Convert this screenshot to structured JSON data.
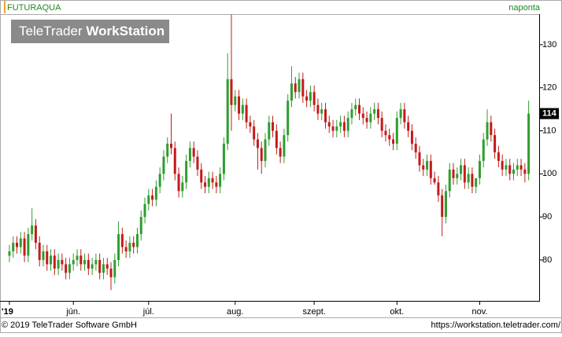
{
  "header": {
    "symbol": "FUTURAQUA",
    "interval": "naponta"
  },
  "watermark": {
    "brand": "TeleTrader",
    "product": "WorkStation"
  },
  "footer": {
    "copyright": "© 2019 TeleTrader Software GmbH",
    "url": "https://workstation.teletrader.com/"
  },
  "chart_data": {
    "type": "candlestick",
    "open": [
      81,
      82,
      84,
      83,
      85,
      81,
      86,
      88,
      84,
      80,
      82,
      79,
      81,
      78,
      80,
      79,
      77,
      79,
      80,
      81,
      79,
      80,
      78,
      79,
      80,
      77,
      79,
      78,
      76,
      80,
      86,
      83,
      82,
      84,
      83,
      86,
      90,
      93,
      95,
      94,
      97,
      100,
      104,
      107,
      106,
      100,
      96,
      98,
      103,
      106,
      104,
      101,
      98,
      97,
      99,
      98,
      97,
      100,
      107,
      122,
      116,
      118,
      114,
      116,
      112,
      111,
      108,
      106,
      103,
      108,
      112,
      110,
      106,
      104,
      109,
      117,
      121,
      119,
      122,
      118,
      117,
      119,
      116,
      114,
      115,
      112,
      111,
      110,
      111,
      112,
      110,
      113,
      115,
      116,
      114,
      113,
      112,
      114,
      115,
      113,
      110,
      109,
      108,
      107,
      113,
      115,
      112,
      110,
      107,
      105,
      102,
      101,
      103,
      99,
      98,
      95,
      90,
      96,
      101,
      99,
      100,
      102,
      98,
      100,
      97,
      99,
      103,
      108,
      112,
      109,
      105,
      103,
      101,
      102,
      100,
      101,
      102,
      101,
      100
    ],
    "high": [
      83.5,
      85.5,
      85.5,
      86.5,
      86.5,
      87.5,
      92,
      89.5,
      85.5,
      83.5,
      83.5,
      82.5,
      82.5,
      81.5,
      81.5,
      80.5,
      80.5,
      81.5,
      82.5,
      82.5,
      81.5,
      81.5,
      80.5,
      81.5,
      81.5,
      80.5,
      80.5,
      79.5,
      81.5,
      89,
      87.5,
      84.5,
      85.5,
      85.5,
      87.5,
      91.5,
      94.5,
      96.5,
      96.5,
      98.5,
      101.5,
      105.5,
      108.5,
      114,
      107.5,
      101.5,
      99.5,
      104.5,
      107.5,
      107.5,
      105.5,
      102.5,
      99.5,
      100.5,
      100.5,
      99.5,
      101.5,
      108.5,
      128,
      137,
      119.5,
      119.5,
      117.5,
      117.5,
      113.5,
      112.5,
      109.5,
      107.5,
      109.5,
      113.5,
      113.5,
      111.5,
      107.5,
      110.5,
      118.5,
      125,
      122.5,
      123.5,
      123.5,
      119.5,
      120.5,
      120.5,
      117.5,
      116.5,
      116.5,
      113.5,
      112.5,
      112.5,
      113.5,
      113.5,
      114.5,
      116.5,
      117.5,
      117.5,
      115.5,
      114.5,
      115.5,
      116.5,
      116.5,
      114.5,
      111.5,
      110.5,
      109.5,
      114.5,
      116.5,
      116.5,
      113.5,
      111.5,
      108.5,
      106.5,
      103.5,
      104.5,
      104.5,
      100.5,
      99.5,
      96.5,
      97.5,
      102.5,
      102.5,
      101.5,
      103.5,
      103.5,
      101.5,
      101.5,
      98.5,
      104.5,
      109.5,
      115,
      113.5,
      110.5,
      106.5,
      104.5,
      103.5,
      103.5,
      102.5,
      103.5,
      103.5,
      102.5,
      117
    ],
    "low": [
      79.5,
      80.5,
      81.5,
      81.5,
      79.5,
      79.5,
      84.5,
      82.5,
      78.5,
      78.5,
      77.5,
      77.5,
      76.5,
      76.5,
      77.5,
      75.5,
      75.5,
      77.5,
      78.5,
      77.5,
      77.5,
      76.5,
      76.5,
      77.5,
      75.5,
      75.5,
      76.5,
      73,
      74.5,
      78.5,
      81.5,
      80.5,
      80.5,
      81.5,
      81.5,
      84.5,
      88.5,
      91.5,
      92.5,
      92.5,
      95.5,
      98.5,
      102.5,
      104.5,
      98.5,
      94.5,
      94.5,
      96.5,
      101.5,
      102.5,
      99.5,
      96.5,
      95.5,
      95.5,
      96.5,
      95.5,
      95.5,
      98.5,
      105.5,
      110,
      114.5,
      112.5,
      112.5,
      110.5,
      109.5,
      106.5,
      101,
      100,
      101.5,
      106.5,
      108.5,
      104.5,
      102.5,
      102.5,
      107.5,
      115.5,
      117.5,
      117.5,
      116.5,
      115.5,
      115.5,
      114.5,
      112.5,
      112.5,
      110.5,
      109.5,
      108.5,
      108.5,
      109.5,
      108.5,
      108.5,
      111.5,
      113.5,
      112.5,
      111.5,
      110.5,
      110.5,
      112.5,
      111.5,
      108.5,
      107.5,
      106.5,
      105.5,
      105.5,
      111.5,
      110.5,
      108.5,
      105.5,
      103.5,
      100.5,
      99.5,
      99.5,
      97.5,
      97.5,
      93.5,
      85.5,
      88.5,
      94.5,
      97.5,
      97.5,
      98.5,
      96.5,
      96.5,
      95.5,
      95.5,
      97.5,
      101.5,
      106.5,
      107.5,
      103.5,
      101.5,
      99.5,
      99.5,
      98.5,
      98.5,
      99.5,
      99.5,
      98,
      98.5
    ],
    "close": [
      82,
      84,
      83,
      85,
      81,
      86,
      88,
      84,
      80,
      82,
      79,
      81,
      78,
      80,
      79,
      77,
      79,
      80,
      81,
      79,
      80,
      78,
      79,
      80,
      77,
      79,
      78,
      76,
      80,
      86,
      83,
      82,
      84,
      83,
      86,
      90,
      93,
      95,
      94,
      97,
      100,
      104,
      107,
      106,
      100,
      96,
      98,
      103,
      106,
      104,
      101,
      98,
      97,
      99,
      98,
      97,
      100,
      107,
      122,
      116,
      118,
      114,
      116,
      112,
      111,
      108,
      106,
      103,
      108,
      112,
      110,
      106,
      104,
      109,
      117,
      121,
      119,
      122,
      118,
      117,
      119,
      116,
      114,
      115,
      112,
      111,
      110,
      111,
      112,
      110,
      113,
      115,
      116,
      114,
      113,
      112,
      114,
      115,
      113,
      110,
      109,
      108,
      107,
      113,
      115,
      112,
      110,
      107,
      105,
      102,
      101,
      103,
      99,
      98,
      95,
      90,
      96,
      101,
      99,
      100,
      102,
      98,
      100,
      97,
      99,
      103,
      108,
      112,
      109,
      105,
      103,
      101,
      102,
      100,
      101,
      102,
      101,
      100,
      114
    ],
    "xlim": [
      -2.5,
      140.8
    ],
    "xticks": [
      {
        "value": 0,
        "label": "'19"
      },
      {
        "value": 17,
        "label": "jún."
      },
      {
        "value": 37,
        "label": "júl."
      },
      {
        "value": 60,
        "label": "aug."
      },
      {
        "value": 81,
        "label": "szept."
      },
      {
        "value": 103,
        "label": "okt."
      },
      {
        "value": 125,
        "label": "nov."
      }
    ],
    "ylim": [
      70.5,
      137.1
    ],
    "yticks": [
      80,
      90,
      100,
      110,
      120,
      130
    ],
    "last_value": 114,
    "up_color": "#2e9e2e",
    "down_color": "#c41a1a"
  }
}
